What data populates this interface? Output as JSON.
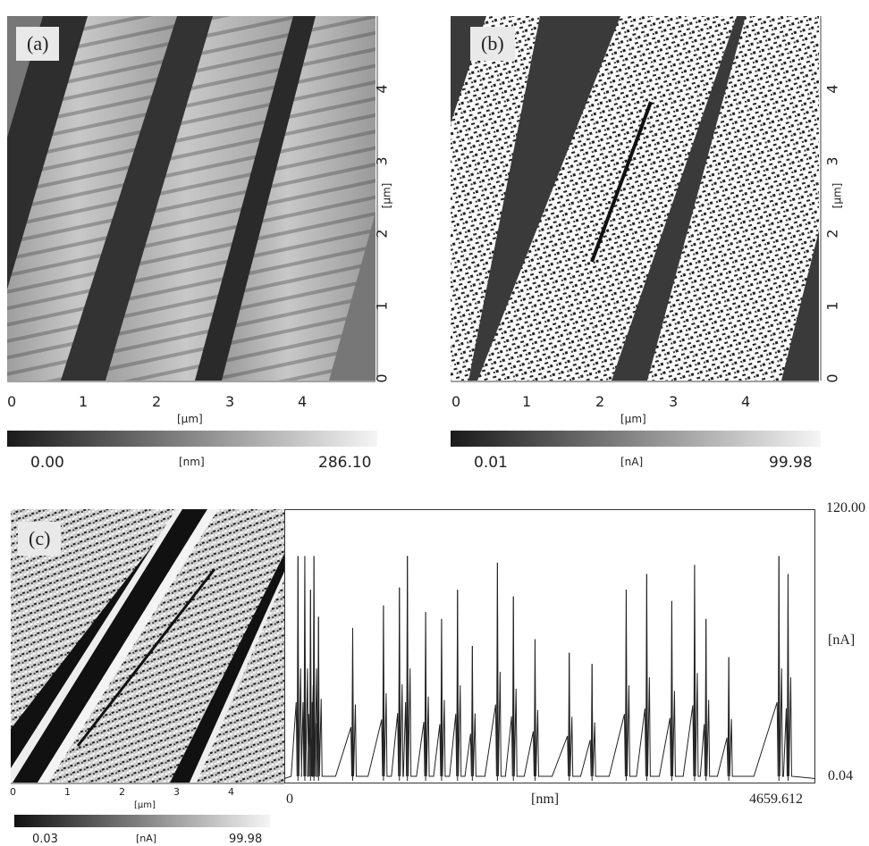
{
  "panels": {
    "a": {
      "label": "(a)",
      "x_ticks": [
        "0",
        "1",
        "2",
        "3",
        "4"
      ],
      "y_ticks": [
        "0",
        "1",
        "2",
        "3",
        "4"
      ],
      "x_unit": "[µm]",
      "y_unit": "[µm]",
      "colorbar": {
        "min": "0.00",
        "max": "286.10",
        "unit": "[nm]"
      }
    },
    "b": {
      "label": "(b)",
      "x_ticks": [
        "0",
        "1",
        "2",
        "3",
        "4"
      ],
      "y_ticks": [
        "0",
        "1",
        "2",
        "3",
        "4"
      ],
      "x_unit": "[µm]",
      "y_unit": "[µm]",
      "colorbar": {
        "min": "0.01",
        "max": "99.98",
        "unit": "[nA]"
      }
    },
    "c": {
      "label": "(c)",
      "x_ticks": [
        "0",
        "1",
        "2",
        "3",
        "4"
      ],
      "x_unit": "[µm]",
      "colorbar": {
        "min": "0.03",
        "max": "99.98",
        "unit": "[nA]"
      }
    }
  },
  "chart_data": {
    "type": "line",
    "title": "",
    "xlabel": "[nm]",
    "ylabel": "[nA]",
    "xlim": [
      0,
      4659.612
    ],
    "ylim": [
      0.04,
      120.0
    ],
    "x_tick_labels": [
      "0",
      "4659.612"
    ],
    "y_tick_labels": [
      "0.04",
      "120.00"
    ],
    "grid": false,
    "peaks": [
      {
        "x": 120,
        "y": 100
      },
      {
        "x": 180,
        "y": 100
      },
      {
        "x": 230,
        "y": 85
      },
      {
        "x": 260,
        "y": 100
      },
      {
        "x": 300,
        "y": 73
      },
      {
        "x": 600,
        "y": 68
      },
      {
        "x": 870,
        "y": 78
      },
      {
        "x": 1010,
        "y": 86
      },
      {
        "x": 1080,
        "y": 100
      },
      {
        "x": 1240,
        "y": 75
      },
      {
        "x": 1380,
        "y": 72
      },
      {
        "x": 1520,
        "y": 85
      },
      {
        "x": 1650,
        "y": 60
      },
      {
        "x": 1870,
        "y": 97
      },
      {
        "x": 2010,
        "y": 82
      },
      {
        "x": 2200,
        "y": 63
      },
      {
        "x": 2500,
        "y": 57
      },
      {
        "x": 2700,
        "y": 52
      },
      {
        "x": 3000,
        "y": 85
      },
      {
        "x": 3180,
        "y": 92
      },
      {
        "x": 3400,
        "y": 80
      },
      {
        "x": 3600,
        "y": 96
      },
      {
        "x": 3700,
        "y": 72
      },
      {
        "x": 3900,
        "y": 55
      },
      {
        "x": 4340,
        "y": 100
      },
      {
        "x": 4420,
        "y": 92
      }
    ]
  }
}
